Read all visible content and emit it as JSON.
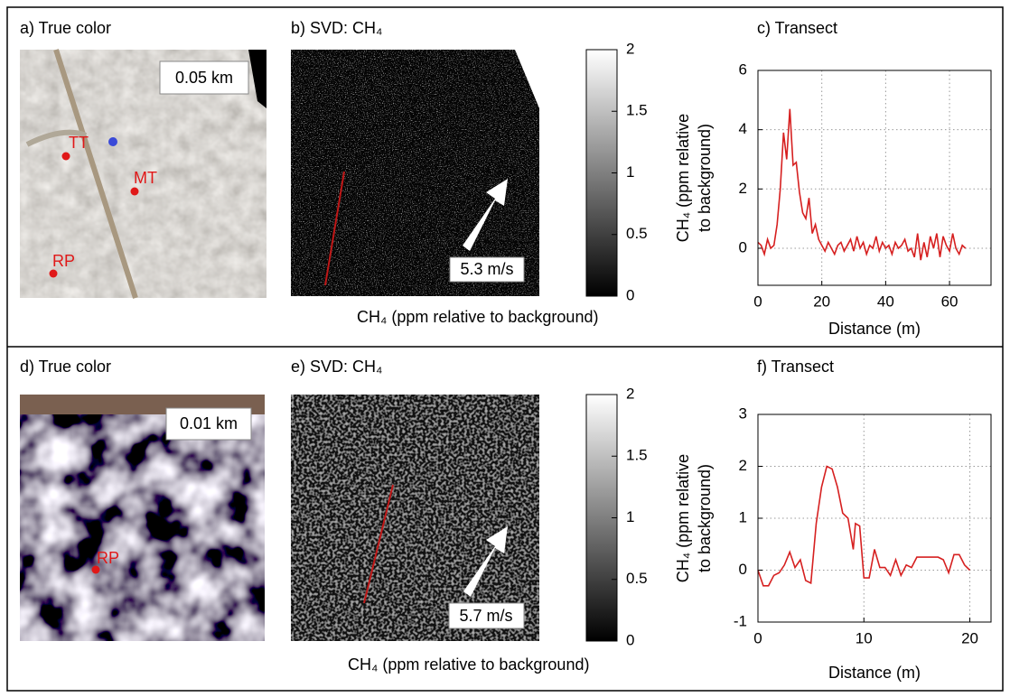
{
  "panels": {
    "a": {
      "title": "a) True color",
      "scale": "0.05 km",
      "points": [
        "TT",
        "MT",
        "RP"
      ]
    },
    "b": {
      "title": "b) SVD: CH₄",
      "wind": "5.3 m/s",
      "colorbar_label": "CH₄ (ppm relative to background)",
      "colorbar_lim": [
        0,
        2
      ],
      "colorbar_ticks": [
        0,
        0.5,
        1,
        1.5,
        2
      ]
    },
    "d": {
      "title": "d) True color",
      "scale": "0.01 km",
      "points": [
        "RP"
      ]
    },
    "e": {
      "title": "e) SVD: CH₄",
      "wind": "5.7 m/s",
      "colorbar_label": "CH₄ (ppm relative to background)",
      "colorbar_lim": [
        0,
        2
      ],
      "colorbar_ticks": [
        0,
        0.5,
        1,
        1.5,
        2
      ]
    }
  },
  "chart_data": [
    {
      "type": "line",
      "title": "c) Transect",
      "x_label": "Distance (m)",
      "y_label": [
        "CH₄ (ppm relative",
        "to background)"
      ],
      "x": [
        0,
        1,
        2,
        3,
        4,
        5,
        6,
        7,
        8,
        9,
        10,
        11,
        12,
        13,
        14,
        15,
        16,
        17,
        18,
        19,
        20,
        21,
        22,
        23,
        24,
        25,
        26,
        27,
        28,
        29,
        30,
        31,
        32,
        33,
        34,
        35,
        36,
        37,
        38,
        39,
        40,
        41,
        42,
        43,
        44,
        45,
        46,
        47,
        48,
        49,
        50,
        51,
        52,
        53,
        54,
        55,
        56,
        57,
        58,
        59,
        60,
        61,
        62,
        63,
        64,
        65
      ],
      "series": [
        {
          "color": "#d62020",
          "values": [
            0.2,
            0.1,
            -0.2,
            0.3,
            0.0,
            0.1,
            0.8,
            2.0,
            3.9,
            3.0,
            4.7,
            2.8,
            2.9,
            1.9,
            1.2,
            1.0,
            1.7,
            0.5,
            0.8,
            0.3,
            0.1,
            -0.1,
            0.2,
            0.0,
            -0.2,
            0.1,
            0.2,
            -0.1,
            0.1,
            0.3,
            -0.1,
            0.4,
            0.0,
            0.2,
            -0.2,
            0.1,
            0.0,
            0.4,
            -0.1,
            0.2,
            0.0,
            0.1,
            -0.2,
            0.2,
            0.0,
            0.1,
            0.3,
            -0.1,
            0.0,
            -0.3,
            0.5,
            -0.4,
            0.2,
            -0.3,
            0.4,
            0.0,
            0.5,
            -0.3,
            0.4,
            0.1,
            -0.1,
            0.5,
            0.0,
            -0.2,
            0.1,
            0.0
          ]
        }
      ],
      "xlim": [
        0,
        73
      ],
      "ylim": [
        -1.25,
        6
      ],
      "xticks": [
        0,
        20,
        40,
        60
      ],
      "yticks": [
        0,
        2,
        4,
        6
      ],
      "grid": true
    },
    {
      "type": "line",
      "title": "f) Transect",
      "x_label": "Distance (m)",
      "y_label": [
        "CH₄ (ppm relative",
        "to background)"
      ],
      "x": [
        0,
        0.5,
        1,
        1.5,
        2,
        2.5,
        3,
        3.5,
        4,
        4.5,
        5,
        5.5,
        6,
        6.5,
        7,
        7.5,
        8,
        8.5,
        9,
        9.2,
        9.6,
        10,
        10.5,
        11,
        11.5,
        12,
        12.5,
        13,
        13.5,
        14,
        14.5,
        15,
        16,
        17,
        17.5,
        18,
        18.5,
        19,
        19.5,
        20
      ],
      "series": [
        {
          "color": "#d62020",
          "values": [
            0.0,
            -0.3,
            -0.3,
            -0.1,
            -0.05,
            0.1,
            0.35,
            0.05,
            0.2,
            -0.2,
            -0.25,
            0.9,
            1.6,
            2.0,
            1.95,
            1.6,
            1.1,
            1.0,
            0.4,
            0.9,
            0.85,
            -0.15,
            -0.15,
            0.4,
            0.05,
            0.05,
            -0.1,
            0.2,
            -0.1,
            0.1,
            0.05,
            0.25,
            0.25,
            0.25,
            0.2,
            -0.05,
            0.3,
            0.3,
            0.1,
            0.0
          ]
        }
      ],
      "xlim": [
        0,
        22
      ],
      "ylim": [
        -1,
        3
      ],
      "xticks": [
        0,
        10,
        20
      ],
      "yticks": [
        -1,
        0,
        1,
        2,
        3
      ],
      "grid": true
    }
  ]
}
